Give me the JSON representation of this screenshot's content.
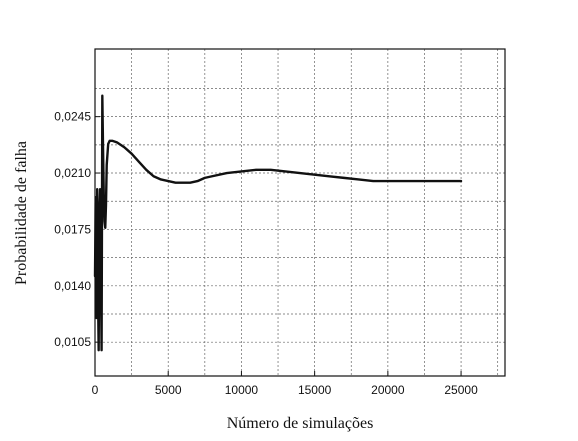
{
  "chart_data": {
    "type": "line",
    "title": "",
    "xlabel": "Número de simulações",
    "ylabel": "Probabilidade de falha",
    "xlim": [
      0,
      28000
    ],
    "ylim": [
      0.0084,
      0.0287
    ],
    "xticks": [
      0,
      5000,
      10000,
      15000,
      20000,
      25000
    ],
    "xtick_labels": [
      "0",
      "5000",
      "10000",
      "15000",
      "20000",
      "25000"
    ],
    "xgrid": [
      0,
      2500,
      5000,
      7500,
      10000,
      12500,
      15000,
      17500,
      20000,
      22500,
      25000,
      27500
    ],
    "yticks": [
      0.0105,
      0.014,
      0.0175,
      0.021,
      0.0245
    ],
    "ytick_labels": [
      "0,0105",
      "0,0140",
      "0,0175",
      "0,0210",
      "0,0245"
    ],
    "ygrid": [
      0.0105,
      0.01225,
      0.014,
      0.01575,
      0.0175,
      0.01925,
      0.021,
      0.02275,
      0.0245,
      0.02625
    ],
    "grid": true,
    "line_color": "#111111",
    "series": [
      {
        "x": [
          0,
          50,
          100,
          150,
          200,
          250,
          300,
          350,
          400,
          450,
          500,
          550,
          600,
          650,
          700,
          750,
          800,
          900,
          1000,
          1200,
          1500,
          2000,
          2500,
          3000,
          3500,
          4000,
          4500,
          5000,
          5500,
          6000,
          6500,
          7000,
          7500,
          8000,
          9000,
          10000,
          11000,
          12000,
          13000,
          14000,
          15000,
          16000,
          17000,
          18000,
          19000,
          20000,
          21000,
          22000,
          23000,
          24000,
          25000
        ],
        "y": [
          0.0146,
          0.0195,
          0.012,
          0.02,
          0.014,
          0.01,
          0.0185,
          0.02,
          0.015,
          0.01,
          0.0258,
          0.0225,
          0.0195,
          0.018,
          0.0176,
          0.019,
          0.0215,
          0.0228,
          0.023,
          0.023,
          0.0229,
          0.0226,
          0.0222,
          0.0217,
          0.0212,
          0.0208,
          0.0206,
          0.0205,
          0.0204,
          0.0204,
          0.0204,
          0.0205,
          0.0207,
          0.0208,
          0.021,
          0.0211,
          0.0212,
          0.0212,
          0.0211,
          0.021,
          0.0209,
          0.0208,
          0.0207,
          0.0206,
          0.0205,
          0.0205,
          0.0205,
          0.0205,
          0.0205,
          0.0205,
          0.0205
        ]
      }
    ]
  }
}
